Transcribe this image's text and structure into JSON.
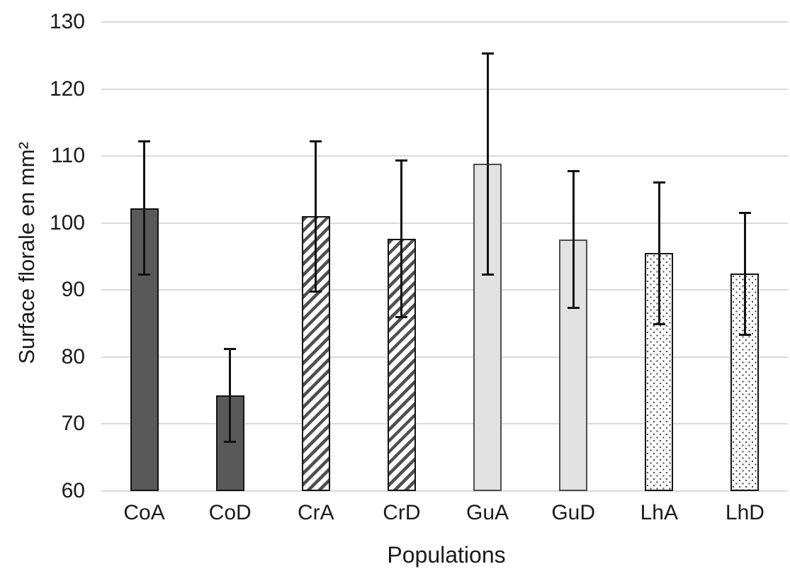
{
  "chart_data": {
    "type": "bar",
    "title": "",
    "xlabel": "Populations",
    "ylabel": "Surface florale en mm²",
    "ylim": [
      60,
      130
    ],
    "yticks": [
      60,
      70,
      80,
      90,
      100,
      110,
      120,
      130
    ],
    "grid": true,
    "legend": false,
    "categories": [
      "CoA",
      "CoD",
      "CrA",
      "CrD",
      "GuA",
      "GuD",
      "LhA",
      "LhD"
    ],
    "values": [
      102.2,
      74.3,
      101.0,
      97.6,
      108.8,
      97.5,
      95.5,
      92.5
    ],
    "error_low": [
      92.2,
      67.3,
      89.7,
      85.9,
      92.2,
      87.3,
      84.9,
      83.3
    ],
    "error_high": [
      112.2,
      81.3,
      112.2,
      109.4,
      125.4,
      107.8,
      106.1,
      101.6
    ],
    "bar_styles": [
      "solid-dark",
      "solid-dark",
      "hatch",
      "hatch",
      "solid-light",
      "solid-light",
      "dots",
      "dots"
    ],
    "colors": {
      "bar_dark": "#595959",
      "bar_light": "#e2e2e2",
      "gridline": "#dadada",
      "error_bar": "#111111",
      "text": "#1a1a1a"
    }
  }
}
